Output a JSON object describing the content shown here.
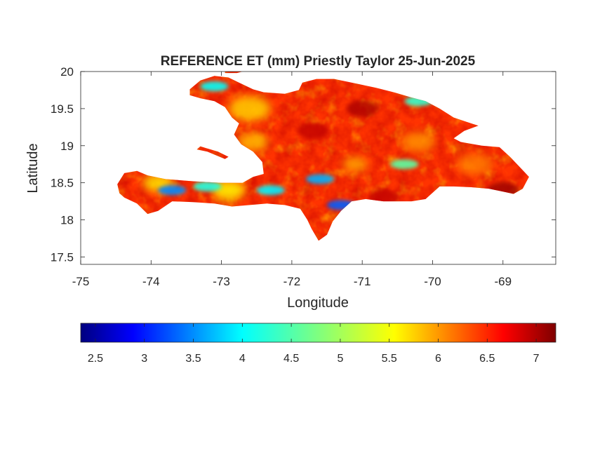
{
  "chart_data": {
    "type": "heatmap",
    "title": "REFERENCE ET (mm) Priestly Taylor 25-Jun-2025",
    "xlabel": "Longitude",
    "ylabel": "Latitude",
    "xlim": [
      -75,
      -68.25
    ],
    "ylim": [
      17.4,
      20
    ],
    "xticks": [
      -75,
      -74,
      -73,
      -72,
      -71,
      -70,
      -69
    ],
    "xtick_labels": [
      "-75",
      "-74",
      "-73",
      "-72",
      "-71",
      "-70",
      "-69"
    ],
    "yticks": [
      17.5,
      18,
      18.5,
      19,
      19.5,
      20
    ],
    "ytick_labels": [
      "17.5",
      "18",
      "18.5",
      "19",
      "19.5",
      "20"
    ],
    "colorbar": {
      "orientation": "horizontal",
      "colormap": "jet",
      "range": [
        2.35,
        7.2
      ],
      "ticks": [
        2.5,
        3,
        3.5,
        4,
        4.5,
        5,
        5.5,
        6,
        6.5,
        7
      ],
      "tick_labels": [
        "2.5",
        "3",
        "3.5",
        "4",
        "4.5",
        "5",
        "5.5",
        "6",
        "6.5",
        "7"
      ]
    },
    "field_summary": {
      "dominant_range": [
        5.8,
        7.2
      ],
      "low_value_zones": [
        {
          "lon": -73.1,
          "lat": 19.8,
          "value": 4.2
        },
        {
          "lon": -73.7,
          "lat": 18.4,
          "value": 3.6
        },
        {
          "lon": -73.2,
          "lat": 18.45,
          "value": 4.3
        },
        {
          "lon": -72.3,
          "lat": 18.4,
          "value": 4.1
        },
        {
          "lon": -71.6,
          "lat": 18.55,
          "value": 3.8
        },
        {
          "lon": -71.3,
          "lat": 18.2,
          "value": 3.4
        },
        {
          "lon": -70.4,
          "lat": 18.75,
          "value": 4.6
        },
        {
          "lon": -70.2,
          "lat": 19.6,
          "value": 4.4
        }
      ],
      "high_value_zones": [
        {
          "lon": -71.0,
          "lat": 19.5,
          "value": 7.0
        },
        {
          "lon": -71.7,
          "lat": 19.2,
          "value": 6.9
        },
        {
          "lon": -70.7,
          "lat": 18.3,
          "value": 6.9
        },
        {
          "lon": -69.0,
          "lat": 18.4,
          "value": 7.1
        }
      ]
    }
  }
}
